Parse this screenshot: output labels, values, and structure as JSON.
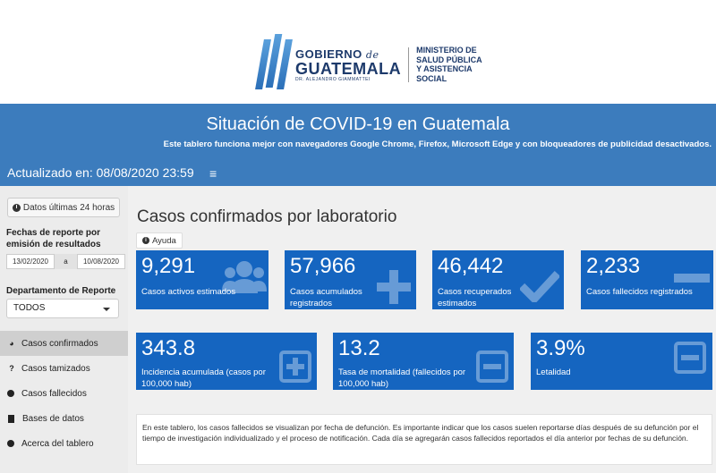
{
  "logo": {
    "gobierno": "GOBIERNO",
    "de": "de",
    "guatemala": "GUATEMALA",
    "sub": "DR. ALEJANDRO GIAMMATTEI",
    "ministry": [
      "MINISTERIO DE",
      "SALUD PÚBLICA",
      "Y ASISTENCIA",
      "SOCIAL"
    ]
  },
  "banner": {
    "title": "Situación de COVID-19 en Guatemala",
    "subtitle": "Este tablero funciona mejor con navegadores Google Chrome, Firefox, Microsoft Edge y con bloqueadores de publicidad desactivados.",
    "updated": "Actualizado en: 08/08/2020 23:59",
    "menu_icon": "≡"
  },
  "sidebar": {
    "last24_label": "Datos últimas 24 horas",
    "dates_label": "Fechas de reporte por emisión de resultados",
    "date_from": "13/02/2020",
    "date_sep": "a",
    "date_to": "10/08/2020",
    "dept_label": "Departamento de Reporte",
    "dept_value": "TODOS",
    "nav": [
      {
        "label": "Casos confirmados",
        "icon": "dashboard-icon"
      },
      {
        "label": "Casos tamizados",
        "icon": "question-icon"
      },
      {
        "label": "Casos fallecidos",
        "icon": "minus-circle-icon"
      },
      {
        "label": "Bases de datos",
        "icon": "file-icon"
      },
      {
        "label": "Acerca del tablero",
        "icon": "info-circle-icon"
      }
    ]
  },
  "main": {
    "title": "Casos confirmados por laboratorio",
    "help_label": "Ayuda",
    "cards_row1": [
      {
        "value": "9,291",
        "label": "Casos activos estimados",
        "icon": "users-icon"
      },
      {
        "value": "57,966",
        "label": "Casos acumulados registrados",
        "icon": "plus-icon"
      },
      {
        "value": "46,442",
        "label": "Casos recuperados estimados",
        "icon": "check-icon"
      },
      {
        "value": "2,233",
        "label": "Casos fallecidos registrados",
        "icon": "minus-icon"
      }
    ],
    "cards_row2": [
      {
        "value": "343.8",
        "label": "Incidencia acumulada (casos por 100,000 hab)",
        "icon": "plus-square-icon"
      },
      {
        "value": "13.2",
        "label": "Tasa de mortalidad (fallecidos por 100,000 hab)",
        "icon": "minus-square-icon"
      },
      {
        "value": "3.9%",
        "label": "Letalidad",
        "icon": "minus-square-icon"
      }
    ],
    "note": "En este tablero, los casos fallecidos se visualizan por fecha de defunción. Es importante indicar que los casos suelen reportarse días después de su defunción por el tiempo de investigación individualizado y el proceso de notificación. Cada día se agregarán casos fallecidos reportados el día anterior por fechas de su defunción."
  },
  "colors": {
    "banner": "#3c7cbd",
    "card": "#1565c0",
    "sidebar": "#ececec",
    "main_bg": "#f0f0f0"
  }
}
